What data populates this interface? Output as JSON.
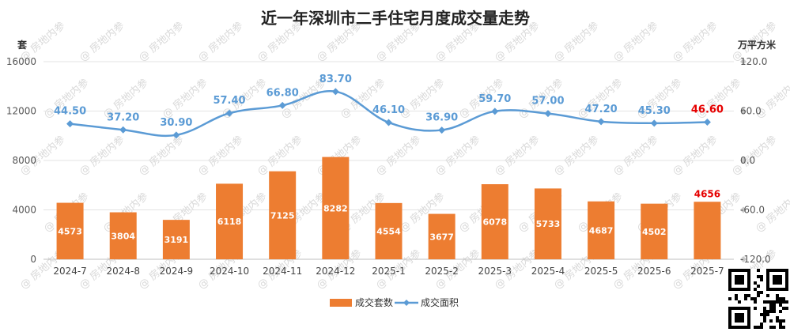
{
  "chart_data": {
    "type": "bar",
    "title": "近一年深圳市二手住宅月度成交量走势",
    "left_axis_unit": "套",
    "right_axis_unit": "万平方米",
    "categories": [
      "2024-7",
      "2024-8",
      "2024-9",
      "2024-10",
      "2024-11",
      "2024-12",
      "2025-1",
      "2025-2",
      "2025-3",
      "2025-4",
      "2025-5",
      "2025-6",
      "2025-7"
    ],
    "left_ticks": [
      "0",
      "4000",
      "8000",
      "12000",
      "16000"
    ],
    "right_ticks": [
      "-120.0",
      "-60.0",
      "0.0",
      "60.0",
      "120.0"
    ],
    "ylim_left": [
      0,
      16000
    ],
    "ylim_right": [
      -120,
      120
    ],
    "series": [
      {
        "name": "成交套数",
        "type": "bar",
        "axis": "left",
        "color": "#ED7D31",
        "values": [
          4573,
          3804,
          3191,
          6118,
          7125,
          8282,
          4554,
          3677,
          6078,
          5733,
          4687,
          4502,
          4656
        ],
        "labels": [
          "4573",
          "3804",
          "3191",
          "6118",
          "7125",
          "8282",
          "4554",
          "3677",
          "6078",
          "5733",
          "4687",
          "4502",
          "4656"
        ]
      },
      {
        "name": "成交面积",
        "type": "line",
        "axis": "right",
        "color": "#5B9BD5",
        "values": [
          44.5,
          37.2,
          30.9,
          57.4,
          66.8,
          83.7,
          46.1,
          36.9,
          59.7,
          57.0,
          47.2,
          45.3,
          46.6
        ],
        "labels": [
          "44.50",
          "37.20",
          "30.90",
          "57.40",
          "66.80",
          "83.70",
          "46.10",
          "36.90",
          "59.70",
          "57.00",
          "47.20",
          "45.30",
          "46.60"
        ]
      }
    ],
    "highlight_color": "#E60000",
    "legend_position": "bottom",
    "grid": true,
    "watermark": "房地内参"
  }
}
